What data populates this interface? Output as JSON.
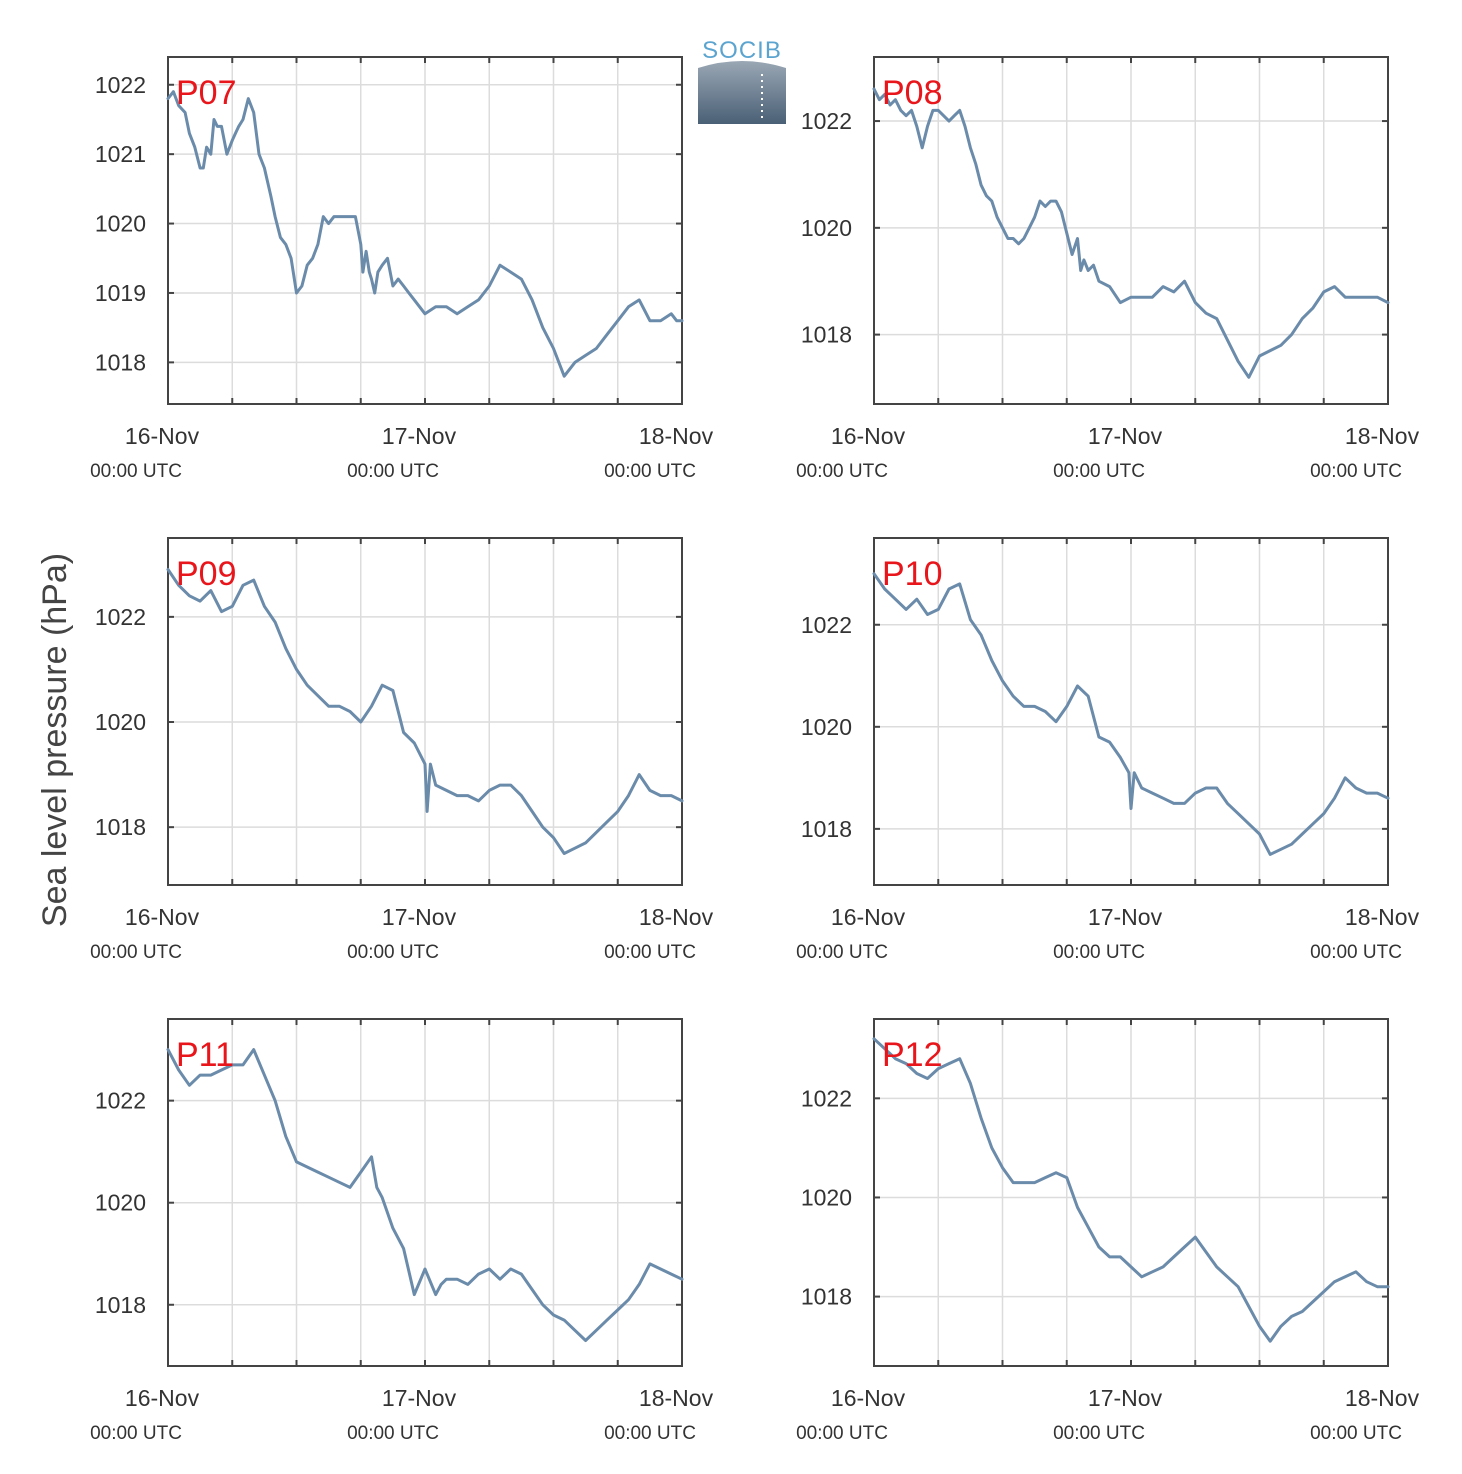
{
  "figure": {
    "ylabel": "Sea level pressure (hPa)",
    "logo_text": "SOCIB"
  },
  "style": {
    "line_color": "#6b8bab",
    "label_color": "#e8151b",
    "grid_color": "#dcdcdc",
    "axis_color": "#444444",
    "logo_color": "#5ba4cf"
  },
  "chart_data": [
    {
      "type": "line",
      "title": "P07",
      "x_ticks": [
        {
          "date": "16-Nov",
          "time": "00:00 UTC"
        },
        {
          "date": "17-Nov",
          "time": "00:00 UTC"
        },
        {
          "date": "18-Nov",
          "time": "00:00 UTC"
        }
      ],
      "xlim_hours": [
        0,
        48
      ],
      "ylim": [
        1017.4,
        1022.4
      ],
      "yticks": [
        1018,
        1019,
        1020,
        1021,
        1022
      ],
      "x_hours": [
        0,
        0.5,
        1,
        1.6,
        2,
        2.5,
        3,
        3.3,
        3.6,
        4,
        4.3,
        4.6,
        5,
        5.5,
        6,
        6.3,
        6.6,
        7,
        7.5,
        8,
        8.5,
        9,
        9.3,
        9.6,
        10,
        10.5,
        11,
        11.5,
        12,
        12.5,
        13,
        13.5,
        14,
        14.5,
        15,
        15.5,
        16,
        16.5,
        17,
        17.5,
        18,
        18.2,
        18.5,
        18.8,
        19,
        19.3,
        19.6,
        20,
        20.5,
        21,
        21.5,
        22,
        22.5,
        23,
        23.5,
        24,
        25,
        26,
        27,
        28,
        29,
        30,
        31,
        32,
        33,
        34,
        35,
        36,
        37,
        38,
        39,
        40,
        41,
        42,
        43,
        44,
        45,
        46,
        47,
        47.5,
        48
      ],
      "y_values": [
        1021.8,
        1021.9,
        1021.7,
        1021.6,
        1021.3,
        1021.1,
        1020.8,
        1020.8,
        1021.1,
        1021.0,
        1021.5,
        1021.4,
        1021.4,
        1021.0,
        1021.2,
        1021.3,
        1021.4,
        1021.5,
        1021.8,
        1021.6,
        1021.0,
        1020.8,
        1020.6,
        1020.4,
        1020.1,
        1019.8,
        1019.7,
        1019.5,
        1019.0,
        1019.1,
        1019.4,
        1019.5,
        1019.7,
        1020.1,
        1020.0,
        1020.1,
        1020.1,
        1020.1,
        1020.1,
        1020.1,
        1019.7,
        1019.3,
        1019.6,
        1019.3,
        1019.2,
        1019.0,
        1019.3,
        1019.4,
        1019.5,
        1019.1,
        1019.2,
        1019.1,
        1019.0,
        1018.9,
        1018.8,
        1018.7,
        1018.8,
        1018.8,
        1018.7,
        1018.8,
        1018.9,
        1019.1,
        1019.4,
        1019.3,
        1019.2,
        1018.9,
        1018.5,
        1018.2,
        1017.8,
        1018.0,
        1018.1,
        1018.2,
        1018.4,
        1018.6,
        1018.8,
        1018.9,
        1018.6,
        1018.6,
        1018.7,
        1018.6,
        1018.6
      ]
    },
    {
      "type": "line",
      "title": "P08",
      "x_ticks": [
        {
          "date": "16-Nov",
          "time": "00:00 UTC"
        },
        {
          "date": "17-Nov",
          "time": "00:00 UTC"
        },
        {
          "date": "18-Nov",
          "time": "00:00 UTC"
        }
      ],
      "xlim_hours": [
        0,
        48
      ],
      "ylim": [
        1016.7,
        1023.2
      ],
      "yticks": [
        1018,
        1020,
        1022
      ],
      "x_hours": [
        0,
        0.5,
        1,
        1.5,
        2,
        2.5,
        3,
        3.5,
        4,
        4.5,
        5,
        5.5,
        6,
        6.5,
        7,
        7.5,
        8,
        8.5,
        9,
        9.5,
        10,
        10.5,
        11,
        11.5,
        12,
        12.5,
        13,
        13.5,
        14,
        14.5,
        15,
        15.5,
        16,
        16.5,
        17,
        17.5,
        18,
        18.5,
        19,
        19.3,
        19.6,
        20,
        20.5,
        21,
        22,
        23,
        24,
        25,
        26,
        27,
        28,
        29,
        30,
        31,
        32,
        33,
        34,
        35,
        36,
        37,
        38,
        39,
        40,
        41,
        42,
        43,
        44,
        45,
        46,
        47,
        48
      ],
      "y_values": [
        1022.6,
        1022.4,
        1022.5,
        1022.3,
        1022.4,
        1022.2,
        1022.1,
        1022.2,
        1021.9,
        1021.5,
        1021.9,
        1022.2,
        1022.2,
        1022.1,
        1022.0,
        1022.1,
        1022.2,
        1021.9,
        1021.5,
        1021.2,
        1020.8,
        1020.6,
        1020.5,
        1020.2,
        1020.0,
        1019.8,
        1019.8,
        1019.7,
        1019.8,
        1020.0,
        1020.2,
        1020.5,
        1020.4,
        1020.5,
        1020.5,
        1020.3,
        1019.9,
        1019.5,
        1019.8,
        1019.2,
        1019.4,
        1019.2,
        1019.3,
        1019.0,
        1018.9,
        1018.6,
        1018.7,
        1018.7,
        1018.7,
        1018.9,
        1018.8,
        1019.0,
        1018.6,
        1018.4,
        1018.3,
        1017.9,
        1017.5,
        1017.2,
        1017.6,
        1017.7,
        1017.8,
        1018.0,
        1018.3,
        1018.5,
        1018.8,
        1018.9,
        1018.7,
        1018.7,
        1018.7,
        1018.7,
        1018.6
      ]
    },
    {
      "type": "line",
      "title": "P09",
      "x_ticks": [
        {
          "date": "16-Nov",
          "time": "00:00 UTC"
        },
        {
          "date": "17-Nov",
          "time": "00:00 UTC"
        },
        {
          "date": "18-Nov",
          "time": "00:00 UTC"
        }
      ],
      "xlim_hours": [
        0,
        48
      ],
      "ylim": [
        1016.9,
        1023.5
      ],
      "yticks": [
        1018,
        1020,
        1022
      ],
      "x_hours": [
        0,
        1,
        2,
        3,
        4,
        5,
        6,
        7,
        8,
        9,
        10,
        11,
        12,
        13,
        14,
        15,
        16,
        17,
        18,
        19,
        20,
        21,
        22,
        23,
        24,
        24.2,
        24.5,
        25,
        26,
        27,
        28,
        29,
        30,
        31,
        32,
        33,
        34,
        35,
        36,
        37,
        38,
        39,
        40,
        41,
        42,
        43,
        44,
        45,
        46,
        47,
        48
      ],
      "y_values": [
        1022.9,
        1022.6,
        1022.4,
        1022.3,
        1022.5,
        1022.1,
        1022.2,
        1022.6,
        1022.7,
        1022.2,
        1021.9,
        1021.4,
        1021.0,
        1020.7,
        1020.5,
        1020.3,
        1020.3,
        1020.2,
        1020.0,
        1020.3,
        1020.7,
        1020.6,
        1019.8,
        1019.6,
        1019.2,
        1018.3,
        1019.2,
        1018.8,
        1018.7,
        1018.6,
        1018.6,
        1018.5,
        1018.7,
        1018.8,
        1018.8,
        1018.6,
        1018.3,
        1018.0,
        1017.8,
        1017.5,
        1017.6,
        1017.7,
        1017.9,
        1018.1,
        1018.3,
        1018.6,
        1019.0,
        1018.7,
        1018.6,
        1018.6,
        1018.5
      ]
    },
    {
      "type": "line",
      "title": "P10",
      "x_ticks": [
        {
          "date": "16-Nov",
          "time": "00:00 UTC"
        },
        {
          "date": "17-Nov",
          "time": "00:00 UTC"
        },
        {
          "date": "18-Nov",
          "time": "00:00 UTC"
        }
      ],
      "xlim_hours": [
        0,
        48
      ],
      "ylim": [
        1016.9,
        1023.7
      ],
      "yticks": [
        1018,
        1020,
        1022
      ],
      "x_hours": [
        0,
        1,
        2,
        3,
        4,
        5,
        6,
        7,
        8,
        9,
        10,
        11,
        12,
        13,
        14,
        15,
        16,
        17,
        18,
        19,
        20,
        21,
        22,
        23,
        23.8,
        24,
        24.3,
        25,
        26,
        27,
        28,
        29,
        30,
        31,
        32,
        33,
        34,
        35,
        36,
        37,
        38,
        39,
        40,
        41,
        42,
        43,
        44,
        45,
        46,
        47,
        48
      ],
      "y_values": [
        1023.0,
        1022.7,
        1022.5,
        1022.3,
        1022.5,
        1022.2,
        1022.3,
        1022.7,
        1022.8,
        1022.1,
        1021.8,
        1021.3,
        1020.9,
        1020.6,
        1020.4,
        1020.4,
        1020.3,
        1020.1,
        1020.4,
        1020.8,
        1020.6,
        1019.8,
        1019.7,
        1019.4,
        1019.1,
        1018.4,
        1019.1,
        1018.8,
        1018.7,
        1018.6,
        1018.5,
        1018.5,
        1018.7,
        1018.8,
        1018.8,
        1018.5,
        1018.3,
        1018.1,
        1017.9,
        1017.5,
        1017.6,
        1017.7,
        1017.9,
        1018.1,
        1018.3,
        1018.6,
        1019.0,
        1018.8,
        1018.7,
        1018.7,
        1018.6
      ]
    },
    {
      "type": "line",
      "title": "P11",
      "x_ticks": [
        {
          "date": "16-Nov",
          "time": "00:00 UTC"
        },
        {
          "date": "17-Nov",
          "time": "00:00 UTC"
        },
        {
          "date": "18-Nov",
          "time": "00:00 UTC"
        }
      ],
      "xlim_hours": [
        0,
        48
      ],
      "ylim": [
        1016.8,
        1023.6
      ],
      "yticks": [
        1018,
        1020,
        1022
      ],
      "x_hours": [
        0,
        1,
        2,
        3,
        4,
        5,
        6,
        7,
        8,
        9,
        10,
        11,
        12,
        13,
        14,
        15,
        16,
        17,
        18,
        19,
        19.5,
        20,
        21,
        22,
        23,
        24,
        25,
        25.5,
        26,
        27,
        28,
        29,
        30,
        31,
        32,
        33,
        34,
        35,
        36,
        37,
        38,
        39,
        40,
        41,
        42,
        43,
        44,
        45,
        46,
        47,
        48
      ],
      "y_values": [
        1023.0,
        1022.6,
        1022.3,
        1022.5,
        1022.5,
        1022.6,
        1022.7,
        1022.7,
        1023.0,
        1022.5,
        1022.0,
        1021.3,
        1020.8,
        1020.7,
        1020.6,
        1020.5,
        1020.4,
        1020.3,
        1020.6,
        1020.9,
        1020.3,
        1020.1,
        1019.5,
        1019.1,
        1018.2,
        1018.7,
        1018.2,
        1018.4,
        1018.5,
        1018.5,
        1018.4,
        1018.6,
        1018.7,
        1018.5,
        1018.7,
        1018.6,
        1018.3,
        1018.0,
        1017.8,
        1017.7,
        1017.5,
        1017.3,
        1017.5,
        1017.7,
        1017.9,
        1018.1,
        1018.4,
        1018.8,
        1018.7,
        1018.6,
        1018.5
      ]
    },
    {
      "type": "line",
      "title": "P12",
      "x_ticks": [
        {
          "date": "16-Nov",
          "time": "00:00 UTC"
        },
        {
          "date": "17-Nov",
          "time": "00:00 UTC"
        },
        {
          "date": "18-Nov",
          "time": "00:00 UTC"
        }
      ],
      "xlim_hours": [
        0,
        48
      ],
      "ylim": [
        1016.6,
        1023.6
      ],
      "yticks": [
        1018,
        1020,
        1022
      ],
      "x_hours": [
        0,
        1,
        2,
        3,
        4,
        5,
        6,
        7,
        8,
        9,
        10,
        11,
        12,
        13,
        14,
        15,
        16,
        17,
        18,
        19,
        20,
        21,
        22,
        23,
        24,
        25,
        26,
        27,
        28,
        29,
        30,
        31,
        32,
        33,
        34,
        35,
        36,
        37,
        38,
        39,
        40,
        41,
        42,
        43,
        44,
        45,
        46,
        47,
        48
      ],
      "y_values": [
        1023.2,
        1023.0,
        1022.8,
        1022.7,
        1022.5,
        1022.4,
        1022.6,
        1022.7,
        1022.8,
        1022.3,
        1021.6,
        1021.0,
        1020.6,
        1020.3,
        1020.3,
        1020.3,
        1020.4,
        1020.5,
        1020.4,
        1019.8,
        1019.4,
        1019.0,
        1018.8,
        1018.8,
        1018.6,
        1018.4,
        1018.5,
        1018.6,
        1018.8,
        1019.0,
        1019.2,
        1018.9,
        1018.6,
        1018.4,
        1018.2,
        1017.8,
        1017.4,
        1017.1,
        1017.4,
        1017.6,
        1017.7,
        1017.9,
        1018.1,
        1018.3,
        1018.4,
        1018.5,
        1018.3,
        1018.2,
        1018.2
      ]
    }
  ]
}
